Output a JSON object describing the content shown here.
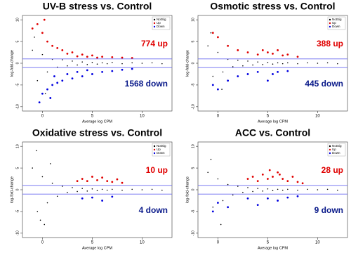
{
  "chart_data": [
    {
      "type": "scatter",
      "title": "UV-B stress vs. Control",
      "xlabel": "Average log CPM",
      "ylabel": "log-fold-change",
      "xlim": [
        -2,
        13
      ],
      "ylim": [
        -11,
        11
      ],
      "xticks": [
        0,
        5,
        10
      ],
      "yticks": [
        -10,
        -5,
        0,
        5,
        10
      ],
      "hlines": [
        1,
        -1
      ],
      "hline_color": "#6a6af0",
      "legend": "upper right",
      "series": [
        {
          "name": "NotSig",
          "color": "#000000",
          "x": [
            -1,
            -0.5,
            0,
            0.5,
            1,
            1.5,
            2,
            2.5,
            3,
            3.5,
            4,
            4.5,
            5,
            5.5,
            6,
            6.5,
            7,
            8,
            9,
            10,
            11,
            12,
            -0.8,
            0.3
          ],
          "values": [
            3,
            -4,
            2,
            -2,
            0.9,
            -0.9,
            0.8,
            -0.6,
            0.5,
            -0.4,
            0.3,
            -0.3,
            0.2,
            -0.2,
            0.1,
            -0.1,
            0.2,
            -0.1,
            0.1,
            0,
            0.1,
            -0.1,
            6,
            -7
          ]
        },
        {
          "name": "Up",
          "color": "#e00000",
          "x": [
            -0.5,
            0,
            0.5,
            1,
            1.5,
            2,
            3,
            4,
            5,
            6,
            7,
            8,
            -1,
            0.2,
            2.5,
            3.5,
            4.5,
            5.5,
            9
          ],
          "values": [
            9,
            7,
            5,
            4,
            3.5,
            3,
            2.5,
            2,
            1.8,
            1.5,
            1.4,
            1.3,
            8,
            10,
            2.2,
            1.6,
            1.5,
            1.3,
            1.2
          ]
        },
        {
          "name": "Down",
          "color": "#0000e0",
          "x": [
            -0.3,
            0,
            0.5,
            1,
            1.5,
            2,
            3,
            4,
            5,
            6,
            7,
            8,
            2.5,
            3.5,
            4.5,
            1.2,
            0.8,
            9
          ],
          "values": [
            -9,
            -7,
            -6,
            -5,
            -4.5,
            -4,
            -3.5,
            -3,
            -2.5,
            -2,
            -1.8,
            -1.5,
            -2.5,
            -2,
            -1.6,
            -3,
            -8,
            -1.3
          ]
        }
      ],
      "annotations": [
        {
          "text": "774 up",
          "color": "#e00000"
        },
        {
          "text": "1568 down",
          "color": "#0a1a8a"
        }
      ]
    },
    {
      "type": "scatter",
      "title": "Osmotic stress vs. Control",
      "xlabel": "Average log CPM",
      "ylabel": "log-fold-change",
      "xlim": [
        -2,
        13
      ],
      "ylim": [
        -11,
        11
      ],
      "xticks": [
        0,
        5,
        10
      ],
      "yticks": [
        -10,
        -5,
        0,
        5,
        10
      ],
      "hlines": [
        1,
        -1
      ],
      "hline_color": "#6a6af0",
      "legend": "upper right",
      "series": [
        {
          "name": "NotSig",
          "color": "#000000",
          "x": [
            -1,
            -0.5,
            0,
            0.5,
            1,
            1.5,
            2,
            2.5,
            3,
            3.5,
            4,
            4.5,
            5,
            5.5,
            6,
            6.5,
            7,
            8,
            9,
            10,
            11,
            12,
            -0.7,
            0.4
          ],
          "values": [
            4,
            -3,
            2.5,
            -2,
            0.9,
            -0.8,
            0.7,
            -0.6,
            0.5,
            -0.4,
            0.3,
            -0.3,
            0.2,
            -0.2,
            0.1,
            -0.1,
            0.1,
            -0.1,
            0.1,
            0,
            0.1,
            -0.1,
            7,
            -6
          ]
        },
        {
          "name": "Up",
          "color": "#e00000",
          "x": [
            -0.5,
            0,
            1,
            2,
            3,
            4,
            5,
            6,
            7,
            8,
            4.5,
            5.5,
            6.5
          ],
          "values": [
            7,
            6,
            4,
            3,
            2.5,
            2,
            2.5,
            3,
            2,
            1.5,
            3,
            2.2,
            1.8
          ]
        },
        {
          "name": "Down",
          "color": "#0000e0",
          "x": [
            -0.5,
            0,
            1,
            2,
            3,
            4,
            5,
            6,
            7,
            5.5
          ],
          "values": [
            -5,
            -6,
            -4,
            -3,
            -2.5,
            -2,
            -4,
            -2,
            -1.8,
            -2.5
          ]
        }
      ],
      "annotations": [
        {
          "text": "388 up",
          "color": "#e00000"
        },
        {
          "text": "445 down",
          "color": "#0a1a8a"
        }
      ]
    },
    {
      "type": "scatter",
      "title": "Oxidative stress vs. Control",
      "xlabel": "Average log CPM",
      "ylabel": "log-fold-change",
      "xlim": [
        -2,
        13
      ],
      "ylim": [
        -11,
        11
      ],
      "xticks": [
        0,
        5,
        10
      ],
      "yticks": [
        -10,
        -5,
        0,
        5,
        10
      ],
      "hlines": [
        1,
        -1
      ],
      "hline_color": "#6a6af0",
      "legend": "upper right",
      "series": [
        {
          "name": "NotSig",
          "color": "#000000",
          "x": [
            -1,
            -0.5,
            0,
            0.5,
            1,
            1.5,
            2,
            2.5,
            3,
            3.5,
            4,
            4.5,
            5,
            5.5,
            6,
            6.5,
            7,
            8,
            9,
            10,
            11,
            12,
            -0.6,
            0.2,
            0.8,
            -0.2
          ],
          "values": [
            5,
            -5,
            3,
            -3,
            1.5,
            -1.5,
            0.8,
            -0.6,
            0.5,
            -0.4,
            0.3,
            -0.3,
            0.2,
            -0.2,
            0.1,
            -0.1,
            0.1,
            -0.1,
            0.1,
            0,
            0.1,
            -0.1,
            9,
            -8,
            6,
            -7
          ]
        },
        {
          "name": "Up",
          "color": "#e00000",
          "x": [
            3.5,
            4,
            4.5,
            5,
            5.5,
            6,
            6.5,
            7,
            7.5,
            8
          ],
          "values": [
            2,
            2.5,
            2,
            3,
            2.2,
            2.8,
            2,
            1.8,
            2.4,
            1.6
          ]
        },
        {
          "name": "Down",
          "color": "#0000e0",
          "x": [
            4,
            5,
            6,
            7
          ],
          "values": [
            -2,
            -1.8,
            -2.5,
            -1.6
          ]
        }
      ],
      "annotations": [
        {
          "text": "10 up",
          "color": "#e00000"
        },
        {
          "text": "4 down",
          "color": "#0a1a8a"
        }
      ]
    },
    {
      "type": "scatter",
      "title": "ACC vs. Control",
      "xlabel": "Average log CPM",
      "ylabel": "log-fold-change",
      "xlim": [
        -2,
        13
      ],
      "ylim": [
        -11,
        11
      ],
      "xticks": [
        0,
        5,
        10
      ],
      "yticks": [
        -10,
        -5,
        0,
        5,
        10
      ],
      "hlines": [
        1,
        -1
      ],
      "hline_color": "#6a6af0",
      "legend": "upper right",
      "series": [
        {
          "name": "NotSig",
          "color": "#000000",
          "x": [
            -1,
            -0.5,
            0,
            0.5,
            1,
            1.5,
            2,
            2.5,
            3,
            3.5,
            4,
            4.5,
            5,
            5.5,
            6,
            6.5,
            7,
            8,
            9,
            10,
            11,
            12,
            -0.7,
            0.3
          ],
          "values": [
            4,
            -4,
            2.5,
            -2.5,
            1.2,
            -1.2,
            0.8,
            -0.6,
            0.5,
            -0.4,
            0.3,
            -0.3,
            0.2,
            -0.2,
            0.1,
            -0.1,
            0.1,
            -0.1,
            0.1,
            0,
            0.1,
            -0.1,
            7,
            -8
          ]
        },
        {
          "name": "Up",
          "color": "#e00000",
          "x": [
            3,
            3.5,
            4,
            4.5,
            5,
            5.5,
            6,
            6.5,
            7,
            7.5,
            8,
            8.5,
            5.2,
            6.2
          ],
          "values": [
            2.5,
            3,
            2,
            3.5,
            2.5,
            3,
            4,
            2.5,
            2,
            3,
            1.8,
            1.5,
            4.5,
            3.5
          ]
        },
        {
          "name": "Down",
          "color": "#0000e0",
          "x": [
            -0.5,
            0,
            1,
            3,
            4,
            5,
            6,
            7,
            8
          ],
          "values": [
            -5,
            -3,
            -4,
            -2,
            -3.5,
            -2,
            -2.5,
            -1.8,
            -1.5
          ]
        }
      ],
      "annotations": [
        {
          "text": "28 up",
          "color": "#e00000"
        },
        {
          "text": "9 down",
          "color": "#0a1a8a"
        }
      ]
    }
  ]
}
